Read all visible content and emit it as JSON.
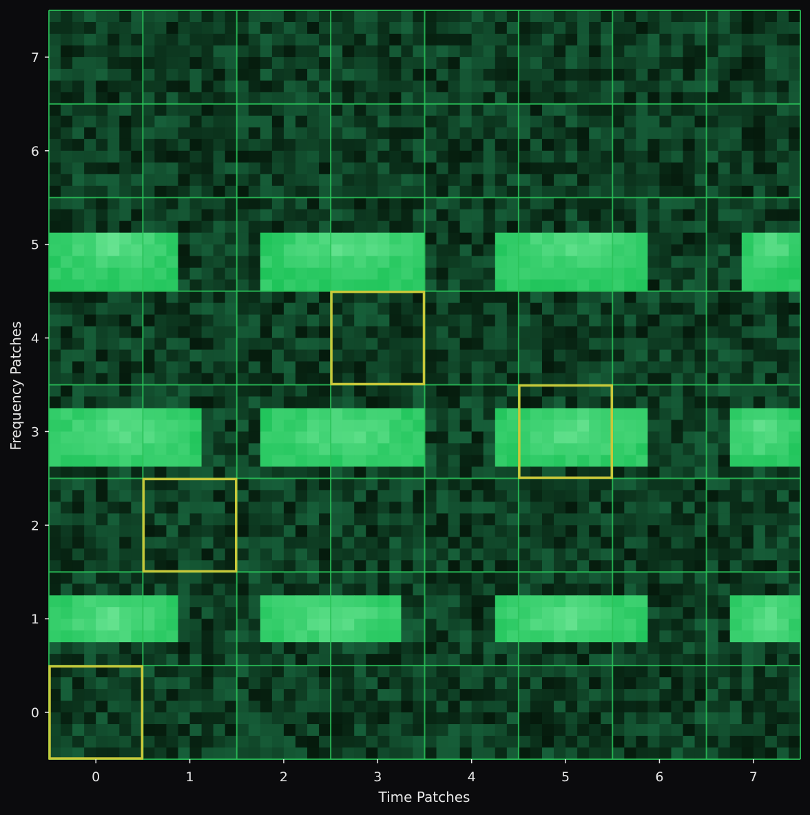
{
  "colors": {
    "background": "#0b0b0d",
    "patch_grid": "#2bc35a",
    "highlight_box": "#c8c83a",
    "band_bright": "#86f0a8",
    "band_base": "#1fc45a",
    "noise_dark": "#051a0c",
    "noise_light": "#17603a"
  },
  "chart_data": {
    "type": "heatmap",
    "title": "",
    "xlabel": "Time Patches",
    "ylabel": "Frequency Patches",
    "x_ticks": [
      "0",
      "1",
      "2",
      "3",
      "4",
      "5",
      "6",
      "7"
    ],
    "y_ticks": [
      "0",
      "1",
      "2",
      "3",
      "4",
      "5",
      "6",
      "7"
    ],
    "xlim": [
      -0.5,
      7.5
    ],
    "ylim": [
      -0.5,
      7.5
    ],
    "grid": true,
    "patch_size": 1,
    "cells_per_patch": 8,
    "bright_bands": [
      {
        "freq_center": 1,
        "freq_range": [
          0.7,
          1.3
        ],
        "time_segments": [
          [
            -0.5,
            0.9
          ],
          [
            1.7,
            3.3
          ],
          [
            4.2,
            5.9
          ],
          [
            6.8,
            7.5
          ]
        ]
      },
      {
        "freq_center": 3,
        "freq_range": [
          2.6,
          3.2
        ],
        "time_segments": [
          [
            -0.5,
            1.1
          ],
          [
            1.8,
            3.5
          ],
          [
            4.3,
            5.9
          ],
          [
            6.7,
            7.5
          ]
        ]
      },
      {
        "freq_center": 5,
        "freq_range": [
          4.5,
          5.1
        ],
        "time_segments": [
          [
            -0.5,
            0.9
          ],
          [
            1.8,
            3.5
          ],
          [
            4.3,
            5.9
          ],
          [
            6.9,
            7.5
          ]
        ]
      }
    ],
    "highlighted_patches": [
      {
        "time": 0,
        "freq": 0
      },
      {
        "time": 1,
        "freq": 2
      },
      {
        "time": 3,
        "freq": 4
      },
      {
        "time": 5,
        "freq": 3
      }
    ]
  }
}
